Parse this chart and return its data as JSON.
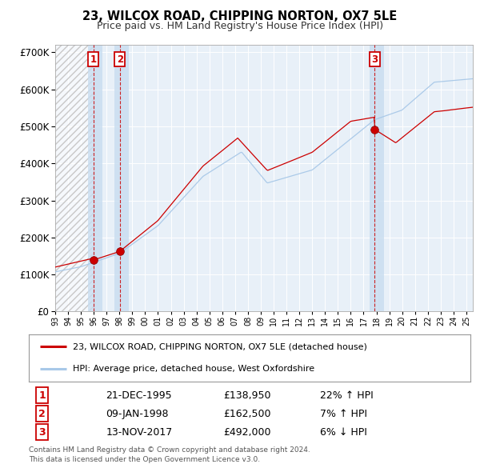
{
  "title": "23, WILCOX ROAD, CHIPPING NORTON, OX7 5LE",
  "subtitle": "Price paid vs. HM Land Registry's House Price Index (HPI)",
  "sale1_date": "21-DEC-1995",
  "sale1_price": 138950,
  "sale1_pct": "22%",
  "sale1_dir": "↑",
  "sale2_date": "09-JAN-1998",
  "sale2_price": 162500,
  "sale2_pct": "7%",
  "sale2_dir": "↑",
  "sale3_date": "13-NOV-2017",
  "sale3_price": 492000,
  "sale3_pct": "6%",
  "sale3_dir": "↓",
  "legend_line1": "23, WILCOX ROAD, CHIPPING NORTON, OX7 5LE (detached house)",
  "legend_line2": "HPI: Average price, detached house, West Oxfordshire",
  "footer1": "Contains HM Land Registry data © Crown copyright and database right 2024.",
  "footer2": "This data is licensed under the Open Government Licence v3.0.",
  "sale1_year": 1995.97,
  "sale2_year": 1998.03,
  "sale3_year": 2017.87,
  "hpi_color": "#a8c8e8",
  "price_color": "#cc0000",
  "dot_color": "#cc0000",
  "vline_color": "#cc0000",
  "shade_color": "#d0e4f5",
  "ylim_max": 720000,
  "ylim_min": 0,
  "xmin": 1993.0,
  "xmax": 2025.5,
  "plot_bg": "#e8f0f8"
}
